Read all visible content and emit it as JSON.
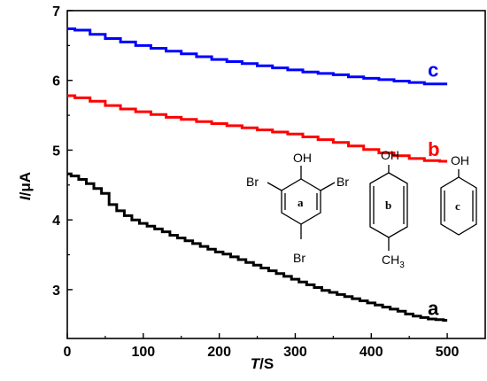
{
  "chart_data": {
    "type": "line",
    "xlabel_var": "T",
    "xlabel_unit": "/S",
    "ylabel_var": "I",
    "ylabel_unit": "/μA",
    "xlim": [
      0,
      550
    ],
    "ylim": [
      2.3,
      7.0
    ],
    "x_ticks": [
      0,
      100,
      200,
      300,
      400,
      500
    ],
    "y_ticks": [
      3,
      4,
      5,
      6,
      7
    ],
    "grid": false,
    "series": [
      {
        "name": "a",
        "color": "#000000",
        "points": [
          [
            0,
            4.66
          ],
          [
            10,
            4.63
          ],
          [
            20,
            4.58
          ],
          [
            30,
            4.52
          ],
          [
            40,
            4.45
          ],
          [
            50,
            4.38
          ],
          [
            60,
            4.22
          ],
          [
            70,
            4.13
          ],
          [
            80,
            4.06
          ],
          [
            90,
            4.0
          ],
          [
            100,
            3.95
          ],
          [
            110,
            3.91
          ],
          [
            120,
            3.87
          ],
          [
            130,
            3.83
          ],
          [
            140,
            3.78
          ],
          [
            150,
            3.74
          ],
          [
            160,
            3.7
          ],
          [
            170,
            3.66
          ],
          [
            180,
            3.62
          ],
          [
            190,
            3.58
          ],
          [
            200,
            3.54
          ],
          [
            210,
            3.51
          ],
          [
            220,
            3.47
          ],
          [
            230,
            3.43
          ],
          [
            240,
            3.39
          ],
          [
            250,
            3.35
          ],
          [
            260,
            3.31
          ],
          [
            270,
            3.27
          ],
          [
            280,
            3.23
          ],
          [
            290,
            3.19
          ],
          [
            300,
            3.15
          ],
          [
            310,
            3.11
          ],
          [
            320,
            3.07
          ],
          [
            330,
            3.03
          ],
          [
            340,
            2.99
          ],
          [
            350,
            2.96
          ],
          [
            360,
            2.93
          ],
          [
            370,
            2.9
          ],
          [
            380,
            2.87
          ],
          [
            390,
            2.84
          ],
          [
            400,
            2.81
          ],
          [
            410,
            2.78
          ],
          [
            420,
            2.75
          ],
          [
            430,
            2.72
          ],
          [
            440,
            2.69
          ],
          [
            450,
            2.65
          ],
          [
            460,
            2.62
          ],
          [
            470,
            2.6
          ],
          [
            480,
            2.58
          ],
          [
            490,
            2.57
          ],
          [
            500,
            2.56
          ]
        ]
      },
      {
        "name": "b",
        "color": "#ff0000",
        "points": [
          [
            0,
            5.78
          ],
          [
            20,
            5.75
          ],
          [
            40,
            5.7
          ],
          [
            60,
            5.64
          ],
          [
            80,
            5.59
          ],
          [
            100,
            5.55
          ],
          [
            120,
            5.51
          ],
          [
            140,
            5.47
          ],
          [
            160,
            5.44
          ],
          [
            180,
            5.41
          ],
          [
            200,
            5.38
          ],
          [
            220,
            5.35
          ],
          [
            240,
            5.32
          ],
          [
            260,
            5.29
          ],
          [
            280,
            5.26
          ],
          [
            300,
            5.23
          ],
          [
            320,
            5.19
          ],
          [
            340,
            5.15
          ],
          [
            360,
            5.11
          ],
          [
            380,
            5.06
          ],
          [
            400,
            5.01
          ],
          [
            420,
            4.96
          ],
          [
            440,
            4.92
          ],
          [
            460,
            4.88
          ],
          [
            480,
            4.85
          ],
          [
            500,
            4.84
          ]
        ]
      },
      {
        "name": "c",
        "color": "#0000ff",
        "points": [
          [
            0,
            6.74
          ],
          [
            20,
            6.72
          ],
          [
            40,
            6.66
          ],
          [
            60,
            6.6
          ],
          [
            80,
            6.55
          ],
          [
            100,
            6.5
          ],
          [
            120,
            6.46
          ],
          [
            140,
            6.42
          ],
          [
            160,
            6.38
          ],
          [
            180,
            6.34
          ],
          [
            200,
            6.3
          ],
          [
            220,
            6.27
          ],
          [
            240,
            6.24
          ],
          [
            260,
            6.21
          ],
          [
            280,
            6.18
          ],
          [
            300,
            6.15
          ],
          [
            320,
            6.12
          ],
          [
            340,
            6.1
          ],
          [
            360,
            6.08
          ],
          [
            380,
            6.05
          ],
          [
            400,
            6.03
          ],
          [
            420,
            6.01
          ],
          [
            440,
            5.99
          ],
          [
            460,
            5.97
          ],
          [
            480,
            5.95
          ],
          [
            500,
            5.95
          ]
        ]
      }
    ],
    "molecules": [
      {
        "label": "a",
        "oh": "OH",
        "br_left": "Br",
        "br_right": "Br",
        "br_bottom": "Br"
      },
      {
        "label": "b",
        "oh": "OH",
        "ch": "CH",
        "sub": "3"
      },
      {
        "label": "c",
        "oh": "OH"
      }
    ]
  }
}
